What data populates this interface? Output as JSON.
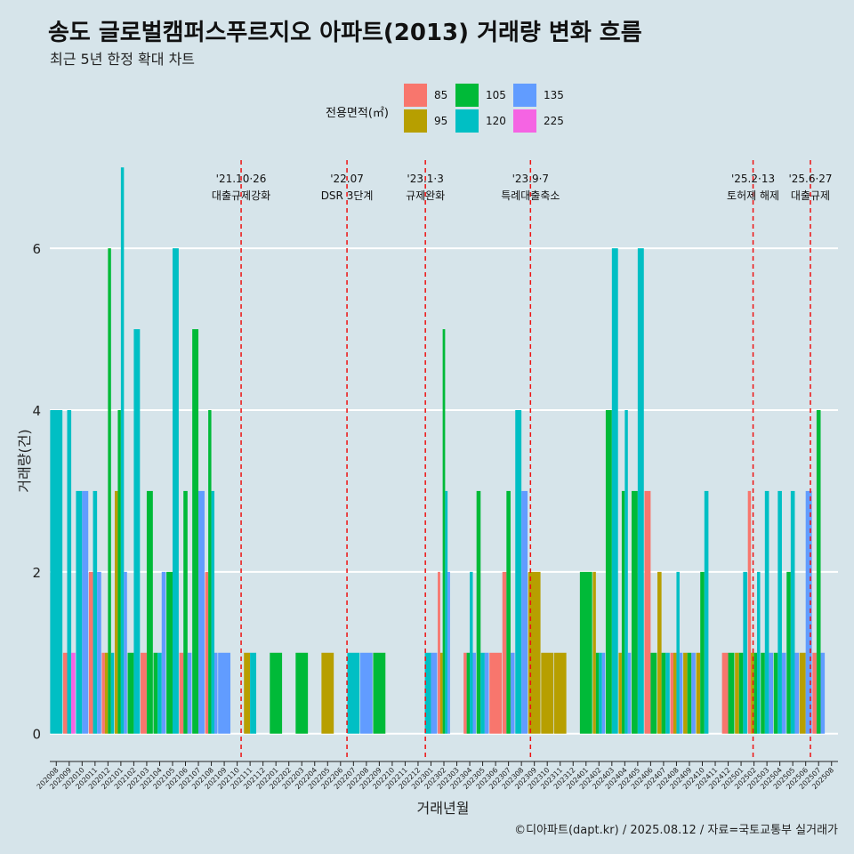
{
  "header": {
    "title": "송도 글로벌캠퍼스푸르지오 아파트(2013) 거래량 변화 흐름",
    "subtitle": "최근 5년 한정 확대 차트"
  },
  "caption": "©디아파트(dapt.kr) / 2025.08.12 / 자료=국토교통부 실거래가",
  "legend": {
    "title": "전용면적(㎡)",
    "items": [
      {
        "label": "85",
        "color": "#f8766d"
      },
      {
        "label": "95",
        "color": "#b79f00"
      },
      {
        "label": "105",
        "color": "#00ba38"
      },
      {
        "label": "120",
        "color": "#00bfc4"
      },
      {
        "label": "135",
        "color": "#619cff"
      },
      {
        "label": "225",
        "color": "#f564e3"
      }
    ]
  },
  "chart_data": {
    "type": "bar",
    "xlabel": "거래년월",
    "ylabel": "거래량(건)",
    "ylim": [
      -0.3,
      7.2
    ],
    "yticks": [
      0,
      2,
      4,
      6
    ],
    "grid": true,
    "legend_position": "top",
    "categories": [
      "202008",
      "202009",
      "202010",
      "202011",
      "202012",
      "202101",
      "202102",
      "202103",
      "202104",
      "202105",
      "202106",
      "202107",
      "202108",
      "202109",
      "202110",
      "202111",
      "202112",
      "202201",
      "202202",
      "202203",
      "202204",
      "202205",
      "202206",
      "202207",
      "202208",
      "202209",
      "202210",
      "202211",
      "202212",
      "202301",
      "202302",
      "202303",
      "202304",
      "202305",
      "202306",
      "202307",
      "202308",
      "202309",
      "202310",
      "202311",
      "202312",
      "202401",
      "202402",
      "202403",
      "202404",
      "202405",
      "202406",
      "202407",
      "202408",
      "202409",
      "202410",
      "202411",
      "202412",
      "202501",
      "202502",
      "202503",
      "202504",
      "202505",
      "202506",
      "202507",
      "202508"
    ],
    "series": [
      {
        "name": "85",
        "color": "#f8766d",
        "values": [
          0,
          1,
          0,
          2,
          1,
          0,
          0,
          1,
          0,
          0,
          1,
          0,
          2,
          0,
          0,
          0,
          0,
          0,
          0,
          0,
          0,
          0,
          0,
          0,
          0,
          0,
          0,
          0,
          0,
          0,
          2,
          0,
          1,
          0,
          1,
          2,
          0,
          0,
          0,
          0,
          0,
          0,
          0,
          0,
          0,
          0,
          3,
          0,
          1,
          0,
          0,
          0,
          1,
          0,
          3,
          0,
          0,
          0,
          0,
          1,
          0
        ]
      },
      {
        "name": "95",
        "color": "#b79f00",
        "values": [
          0,
          0,
          0,
          0,
          1,
          3,
          0,
          0,
          0,
          0,
          0,
          0,
          0,
          0,
          0,
          1,
          0,
          0,
          0,
          0,
          0,
          1,
          0,
          0,
          0,
          0,
          0,
          0,
          0,
          0,
          1,
          0,
          0,
          0,
          0,
          0,
          0,
          2,
          1,
          1,
          0,
          0,
          2,
          0,
          1,
          0,
          0,
          2,
          1,
          1,
          1,
          0,
          0,
          1,
          1,
          0,
          0,
          0,
          1,
          0,
          0
        ]
      },
      {
        "name": "105",
        "color": "#00ba38",
        "values": [
          0,
          0,
          0,
          0,
          6,
          4,
          1,
          3,
          1,
          2,
          3,
          5,
          4,
          0,
          0,
          0,
          0,
          1,
          0,
          1,
          0,
          0,
          0,
          0,
          0,
          1,
          0,
          0,
          0,
          0,
          5,
          0,
          1,
          3,
          0,
          3,
          0,
          0,
          0,
          0,
          0,
          2,
          1,
          4,
          3,
          3,
          1,
          1,
          0,
          1,
          2,
          0,
          1,
          1,
          1,
          1,
          1,
          2,
          0,
          4,
          0
        ]
      },
      {
        "name": "120",
        "color": "#00bfc4",
        "values": [
          4,
          4,
          3,
          3,
          1,
          7,
          5,
          0,
          1,
          6,
          0,
          0,
          3,
          0,
          0,
          1,
          0,
          0,
          0,
          0,
          0,
          0,
          0,
          1,
          0,
          0,
          0,
          0,
          0,
          1,
          3,
          0,
          2,
          1,
          0,
          0,
          4,
          0,
          0,
          0,
          0,
          0,
          1,
          6,
          4,
          6,
          0,
          1,
          2,
          0,
          3,
          0,
          0,
          2,
          2,
          3,
          3,
          3,
          0,
          0,
          0
        ]
      },
      {
        "name": "135",
        "color": "#619cff",
        "values": [
          0,
          0,
          3,
          2,
          0,
          2,
          0,
          0,
          2,
          0,
          1,
          3,
          1,
          1,
          0,
          0,
          0,
          0,
          0,
          0,
          0,
          0,
          0,
          0,
          1,
          0,
          0,
          0,
          0,
          1,
          2,
          0,
          1,
          1,
          0,
          1,
          3,
          0,
          0,
          0,
          0,
          0,
          1,
          0,
          1,
          0,
          0,
          0,
          1,
          1,
          0,
          0,
          0,
          0,
          0,
          1,
          1,
          1,
          3,
          1,
          0
        ]
      },
      {
        "name": "225",
        "color": "#f564e3",
        "values": [
          0,
          1,
          0,
          0,
          0,
          0,
          0,
          0,
          0,
          0,
          0,
          0,
          0,
          0,
          0,
          0,
          0,
          0,
          0,
          0,
          0,
          0,
          0,
          0,
          0,
          0,
          0,
          0,
          0,
          0,
          0,
          0,
          0,
          0,
          0,
          0,
          0,
          0,
          0,
          0,
          0,
          0,
          0,
          0,
          0,
          0,
          0,
          0,
          0,
          0,
          0,
          0,
          0,
          0,
          0,
          0,
          0,
          0,
          0,
          0,
          0
        ]
      }
    ],
    "annotations": [
      {
        "date": "2021-10-26",
        "line1": "'21.10·26",
        "line2": "대출규제강화"
      },
      {
        "date": "2022-07-01",
        "line1": "'22.07",
        "line2": "DSR 3단계"
      },
      {
        "date": "2023-01-03",
        "line1": "'23.1·3",
        "line2": "규제완화"
      },
      {
        "date": "2023-09-07",
        "line1": "'23.9·7",
        "line2": "특례대출축소"
      },
      {
        "date": "2025-02-13",
        "line1": "'25.2·13",
        "line2": "토허제 해제"
      },
      {
        "date": "2025-06-27",
        "line1": "'25.6·27",
        "line2": "대출규제"
      }
    ]
  }
}
